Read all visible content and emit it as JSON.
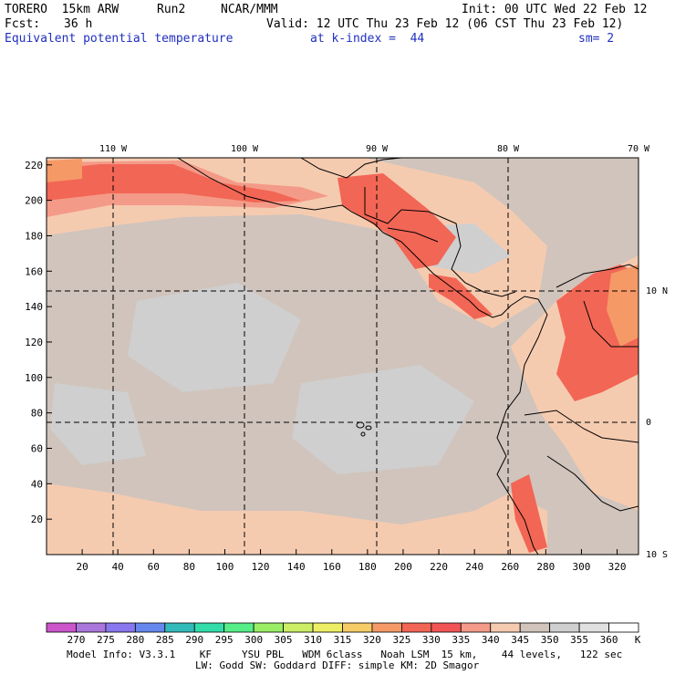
{
  "header": {
    "model": "TORERO  15km ARW",
    "run": "Run2",
    "org": "NCAR/MMM",
    "init": "Init: 00 UTC Wed 22 Feb 12",
    "fcst_label": "Fcst:",
    "fcst_value": "36 h",
    "valid": "Valid: 12 UTC Thu 23 Feb 12 (06 CST Thu 23 Feb 12)",
    "field": "Equivalent potential temperature",
    "level": "at k-index =  44",
    "smooth": "sm= 2"
  },
  "map": {
    "top_lon_labels": [
      "110 W",
      "100 W",
      "90 W",
      "80 W",
      "70 W"
    ],
    "right_lat_labels": [
      "10 N",
      "0",
      "10 S"
    ],
    "y_ticks": [
      "20",
      "40",
      "60",
      "80",
      "100",
      "120",
      "140",
      "160",
      "180",
      "200",
      "220"
    ],
    "x_ticks": [
      "20",
      "40",
      "60",
      "80",
      "100",
      "120",
      "140",
      "160",
      "180",
      "200",
      "220",
      "240",
      "260",
      "280",
      "300",
      "320"
    ]
  },
  "colorbar": {
    "labels": [
      "270",
      "275",
      "280",
      "285",
      "290",
      "295",
      "300",
      "305",
      "310",
      "315",
      "320",
      "325",
      "330",
      "335",
      "340",
      "345",
      "350",
      "355",
      "360"
    ],
    "unit": "K",
    "colors": [
      "#cc55cc",
      "#aa77dd",
      "#8877ee",
      "#6688ee",
      "#33bbbb",
      "#33ddaa",
      "#55ee88",
      "#99ee66",
      "#ccee66",
      "#eeee66",
      "#f5cc66",
      "#f59966",
      "#f26655",
      "#f25555",
      "#f49a88",
      "#f5cbb0",
      "#d0c4bc",
      "#cfcfcf",
      "#e0e0e0",
      "#ffffff"
    ]
  },
  "footer": {
    "line1": "Model Info: V3.3.1    KF     YSU PBL   WDM 6class   Noah LSM  15 km,    44 levels,   122 sec",
    "line2": "LW: Godd SW: Goddard DIFF: simple KM: 2D Smagor"
  }
}
